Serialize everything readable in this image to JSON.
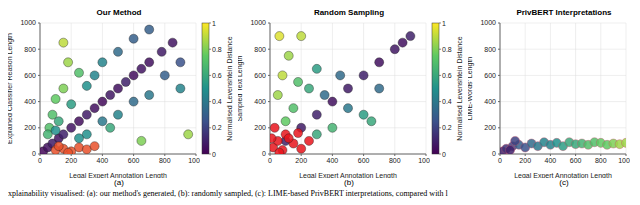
{
  "caption": "xplainability visualised: (a): our method's generated, (b): randomly sampled, (c): LIME-based PrivBERT interpretations, compared with l",
  "chart_data": [
    {
      "type": "scatter",
      "title": "Our Method",
      "panel_label": "(a)",
      "x_label": "Legal Expert Annotation Length",
      "y_label": "Explained Classifier Reason Length",
      "xlim": [
        0,
        1000
      ],
      "ylim": [
        0,
        1000
      ],
      "xticks": [
        0,
        200,
        400,
        600,
        800,
        1000
      ],
      "yticks": [
        0,
        200,
        400,
        600,
        800,
        1000
      ],
      "grid": true,
      "colorbar": {
        "label": "Normalised Levenshtein Distance",
        "range": [
          0,
          1
        ],
        "ticks": [
          0,
          0.2,
          0.4,
          0.6,
          0.8,
          1
        ]
      },
      "series": [
        {
          "marker": "circle",
          "x": [
            20,
            50,
            80,
            120,
            150,
            200,
            250,
            300,
            350,
            400,
            450,
            500,
            550,
            600,
            650,
            700,
            780,
            850,
            100,
            150,
            80,
            200,
            120,
            60,
            250,
            300,
            180,
            350,
            400,
            500,
            150,
            600,
            700,
            50,
            100,
            300,
            400,
            500,
            600,
            700,
            800,
            900,
            450,
            250,
            900,
            950,
            650
          ],
          "y": [
            20,
            50,
            80,
            120,
            150,
            200,
            250,
            300,
            350,
            400,
            450,
            500,
            550,
            600,
            650,
            700,
            780,
            850,
            420,
            500,
            300,
            380,
            250,
            200,
            620,
            520,
            700,
            600,
            700,
            780,
            850,
            880,
            950,
            150,
            180,
            150,
            250,
            300,
            400,
            450,
            600,
            700,
            200,
            120,
            500,
            150,
            100
          ],
          "distance": [
            0.02,
            0.05,
            0.08,
            0.05,
            0.1,
            0.06,
            0.04,
            0.08,
            0.05,
            0.03,
            0.07,
            0.05,
            0.1,
            0.04,
            0.06,
            0.05,
            0.08,
            0.06,
            0.75,
            0.8,
            0.7,
            0.55,
            0.6,
            0.7,
            0.7,
            0.5,
            0.85,
            0.45,
            0.45,
            0.35,
            0.9,
            0.3,
            0.3,
            0.65,
            0.5,
            0.5,
            0.4,
            0.45,
            0.35,
            0.4,
            0.3,
            0.25,
            0.6,
            0.5,
            0.45,
            0.85,
            0.8
          ]
        },
        {
          "marker": "circle",
          "color": "#e8502a",
          "x": [
            100,
            150,
            200,
            250,
            300,
            350,
            180,
            120
          ],
          "y": [
            30,
            40,
            20,
            50,
            35,
            60,
            10,
            60
          ]
        }
      ]
    },
    {
      "type": "scatter",
      "title": "Random Sampling",
      "panel_label": "(b)",
      "x_label": "Legal Expert Annotation Length",
      "y_label": "Sampled Text Length",
      "xlim": [
        0,
        1000
      ],
      "ylim": [
        0,
        1000
      ],
      "xticks": [
        0,
        200,
        400,
        600,
        800,
        1000
      ],
      "yticks": [
        0,
        200,
        400,
        600,
        800,
        1000
      ],
      "grid": true,
      "colorbar": {
        "label": "Normalised Levenshtein Distance",
        "range": [
          0,
          1
        ],
        "ticks": [
          0,
          0.2,
          0.4,
          0.6,
          0.8,
          1
        ]
      },
      "series": [
        {
          "marker": "circle",
          "x": [
            100,
            200,
            300,
            400,
            500,
            600,
            700,
            800,
            900,
            850,
            50,
            80,
            120,
            150,
            200,
            100,
            250,
            300,
            60,
            180,
            350,
            450,
            300,
            400,
            600,
            500,
            700,
            650
          ],
          "y": [
            100,
            200,
            300,
            400,
            500,
            600,
            700,
            800,
            900,
            850,
            450,
            600,
            750,
            350,
            900,
            250,
            500,
            650,
            900,
            550,
            450,
            600,
            150,
            200,
            300,
            350,
            500,
            250
          ],
          "distance": [
            0.1,
            0.08,
            0.1,
            0.05,
            0.08,
            0.1,
            0.05,
            0.07,
            0.1,
            0.05,
            0.85,
            0.9,
            0.85,
            0.7,
            0.9,
            0.75,
            0.6,
            0.55,
            0.95,
            0.7,
            0.35,
            0.35,
            0.6,
            0.65,
            0.55,
            0.4,
            0.35,
            0.6
          ]
        },
        {
          "marker": "circle",
          "color": "#e8141c",
          "x": [
            20,
            50,
            80,
            100,
            150,
            200,
            30,
            120,
            250,
            60,
            180,
            10
          ],
          "y": [
            50,
            100,
            30,
            150,
            80,
            40,
            200,
            120,
            100,
            10,
            160,
            120
          ]
        }
      ]
    },
    {
      "type": "scatter",
      "title": "PrivBERT Interpretations",
      "panel_label": "(c)",
      "x_label": "Legal Expert Annotation Length",
      "y_label": "LIME-Words' Length",
      "xlim": [
        0,
        1000
      ],
      "ylim": [
        0,
        1000
      ],
      "xticks": [
        0,
        200,
        400,
        600,
        800,
        1000
      ],
      "yticks": [
        0,
        200,
        400,
        600,
        800,
        1000
      ],
      "grid": true,
      "series": [
        {
          "marker": "circle",
          "x": [
            20,
            50,
            100,
            150,
            200,
            250,
            300,
            350,
            400,
            450,
            500,
            550,
            600,
            650,
            700,
            750,
            800,
            850,
            900,
            950,
            1000,
            80,
            120
          ],
          "y": [
            20,
            40,
            60,
            70,
            50,
            80,
            60,
            90,
            70,
            85,
            60,
            90,
            75,
            80,
            70,
            90,
            85,
            70,
            80,
            75,
            85,
            30,
            100
          ],
          "distance": [
            0.1,
            0.15,
            0.2,
            0.3,
            0.25,
            0.35,
            0.4,
            0.45,
            0.45,
            0.5,
            0.55,
            0.6,
            0.6,
            0.65,
            0.7,
            0.7,
            0.75,
            0.75,
            0.8,
            0.85,
            0.85,
            0.1,
            0.2
          ]
        }
      ]
    }
  ]
}
